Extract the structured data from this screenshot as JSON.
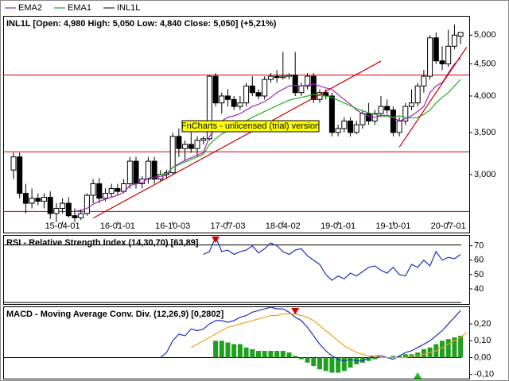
{
  "chart_data": [
    {
      "type": "candlestick",
      "name": "INL1L",
      "title": "INL1L [Open: 4,980  High: 5,050  Low: 4,840  Close: 5,050] (+5,21%)",
      "watermark": "FnCharts - unlicensed (trial) version",
      "categories": [
        null,
        null,
        null,
        null,
        null,
        null,
        null,
        null,
        "15-04-01",
        null,
        null,
        null,
        null,
        null,
        null,
        null,
        null,
        "16-01-01",
        null,
        null,
        null,
        null,
        null,
        null,
        null,
        null,
        "16-10-03",
        null,
        null,
        null,
        null,
        null,
        null,
        null,
        null,
        "17-07-03",
        null,
        null,
        null,
        null,
        null,
        null,
        null,
        null,
        "18-04-02",
        null,
        null,
        null,
        null,
        null,
        null,
        null,
        null,
        "19-01-01",
        null,
        null,
        null,
        null,
        null,
        null,
        null,
        null,
        "19-10-01",
        null,
        null,
        null,
        null,
        null,
        null,
        null,
        null,
        "20-07-01",
        null,
        null
      ],
      "open": [
        3050,
        3200,
        2800,
        2700,
        2750,
        2720,
        2760,
        2600,
        2650,
        2700,
        2580,
        2560,
        2600,
        2780,
        2900,
        2750,
        2800,
        2850,
        2820,
        2900,
        3150,
        2900,
        2950,
        3150,
        2950,
        3000,
        3020,
        3450,
        3300,
        3350,
        3300,
        3400,
        3420,
        4300,
        3900,
        4000,
        3950,
        3850,
        3900,
        4150,
        4050,
        4000,
        4250,
        4300,
        4280,
        4300,
        4320,
        4050,
        4150,
        4300,
        3950,
        4050,
        4000,
        3500,
        3550,
        3650,
        3500,
        3600,
        3750,
        3650,
        3750,
        3850,
        3800,
        3500,
        3650,
        3850,
        3900,
        4150,
        4300,
        4950,
        4550,
        4500,
        4800,
        4980
      ],
      "high": [
        3250,
        3250,
        2900,
        2850,
        2800,
        2800,
        2820,
        2700,
        2750,
        2760,
        2650,
        2640,
        2800,
        2950,
        2960,
        2850,
        2900,
        2900,
        2950,
        3200,
        3200,
        2980,
        3200,
        3200,
        3050,
        3050,
        3500,
        3550,
        3400,
        3500,
        3450,
        3450,
        4320,
        4350,
        4050,
        4100,
        4000,
        4000,
        4200,
        4300,
        4100,
        4300,
        4350,
        4400,
        4700,
        4350,
        4700,
        4200,
        4350,
        4350,
        4100,
        4100,
        4050,
        3600,
        3700,
        3700,
        3650,
        3800,
        3900,
        3800,
        4000,
        3950,
        3850,
        3700,
        3900,
        4100,
        4200,
        4400,
        5000,
        5050,
        4800,
        5100,
        5200,
        5050
      ],
      "low": [
        2950,
        2750,
        2600,
        2650,
        2680,
        2650,
        2550,
        2520,
        2600,
        2560,
        2520,
        2540,
        2580,
        2700,
        2700,
        2720,
        2760,
        2780,
        2800,
        2850,
        2850,
        2850,
        2900,
        2900,
        2920,
        2950,
        3000,
        3200,
        3150,
        3250,
        3200,
        3350,
        3400,
        3850,
        3750,
        3850,
        3800,
        3800,
        3850,
        4000,
        3950,
        3950,
        4200,
        4200,
        4250,
        4250,
        4000,
        4000,
        4100,
        3900,
        3900,
        3950,
        3450,
        3450,
        3500,
        3450,
        3480,
        3550,
        3600,
        3600,
        3700,
        3750,
        3450,
        3450,
        3600,
        3800,
        3850,
        4050,
        4250,
        4500,
        4400,
        4450,
        4750,
        4840
      ],
      "close": [
        3200,
        2800,
        2700,
        2750,
        2720,
        2760,
        2600,
        2650,
        2700,
        2580,
        2560,
        2600,
        2780,
        2900,
        2750,
        2800,
        2850,
        2820,
        2900,
        3150,
        2900,
        2950,
        3150,
        2950,
        3000,
        3020,
        3450,
        3300,
        3350,
        3300,
        3400,
        3420,
        4300,
        3900,
        4000,
        3950,
        3850,
        3900,
        4150,
        4050,
        4000,
        4250,
        4300,
        4280,
        4300,
        4320,
        4050,
        4150,
        4300,
        3950,
        4050,
        4000,
        3500,
        3550,
        3650,
        3500,
        3600,
        3750,
        3650,
        3750,
        3850,
        3800,
        3500,
        3650,
        3850,
        3900,
        4150,
        4300,
        4950,
        4550,
        4500,
        4800,
        5000,
        5050
      ],
      "series": [
        {
          "name": "EMA2",
          "color": "#a020c0",
          "values": [
            null,
            null,
            null,
            null,
            null,
            null,
            null,
            null,
            null,
            null,
            2620,
            2630,
            2650,
            2690,
            2720,
            2740,
            2760,
            2780,
            2810,
            2880,
            2900,
            2910,
            2960,
            2970,
            2980,
            2990,
            3080,
            3120,
            3160,
            3190,
            3220,
            3250,
            3450,
            3550,
            3650,
            3700,
            3720,
            3750,
            3800,
            3850,
            3880,
            3920,
            3980,
            4050,
            4100,
            4150,
            4160,
            4150,
            4160,
            4180,
            4150,
            4120,
            4100,
            4020,
            3950,
            3880,
            3800,
            3750,
            3720,
            3700,
            3720,
            3730,
            3700,
            3650,
            3680,
            3720,
            3780,
            3850,
            4050,
            4150,
            4200,
            4350,
            4500,
            4600
          ]
        },
        {
          "name": "EMA1",
          "color": "#20b020",
          "values": [
            null,
            null,
            null,
            null,
            null,
            null,
            null,
            null,
            null,
            null,
            null,
            null,
            null,
            null,
            null,
            null,
            null,
            null,
            null,
            null,
            null,
            null,
            null,
            null,
            3000,
            3010,
            3080,
            3110,
            3140,
            3170,
            3200,
            3230,
            3350,
            3420,
            3480,
            3520,
            3560,
            3600,
            3650,
            3700,
            3740,
            3780,
            3820,
            3860,
            3900,
            3940,
            3960,
            3980,
            4000,
            4020,
            4010,
            4000,
            3980,
            3940,
            3900,
            3860,
            3820,
            3790,
            3760,
            3740,
            3720,
            3710,
            3700,
            3720,
            3700,
            3690,
            3700,
            3740,
            3800,
            3900,
            3980,
            4050,
            4150,
            4250
          ]
        }
      ],
      "ylim": [
        2425,
        5350
      ],
      "log_scale": true,
      "yticks": [
        {
          "value": 5000,
          "label": "5,000"
        },
        {
          "value": 4500,
          "label": "4,500"
        },
        {
          "value": 4000,
          "label": "4,000"
        },
        {
          "value": 3500,
          "label": "3,500"
        },
        {
          "value": 3000,
          "label": "3,000"
        }
      ],
      "hlines": [
        4320,
        3260,
        2620
      ],
      "line_color": "#cc0000",
      "trendlines": [
        {
          "from": [
            13,
            2557
          ],
          "to": [
            60,
            4545
          ]
        },
        {
          "from": [
            63,
            3317
          ],
          "to": [
            74,
            4785
          ]
        }
      ]
    },
    {
      "type": "line",
      "title": "RSI - Relative Strength Index (14,30,70) [63,89]",
      "color": "#2030c0",
      "values": [
        null,
        null,
        null,
        null,
        null,
        null,
        null,
        null,
        null,
        null,
        null,
        null,
        null,
        null,
        null,
        null,
        null,
        null,
        null,
        null,
        null,
        null,
        null,
        null,
        null,
        null,
        null,
        null,
        null,
        null,
        null,
        64,
        66,
        76,
        66,
        67,
        64,
        66,
        67,
        70,
        65,
        68,
        72,
        70,
        66,
        64,
        67,
        68,
        63,
        60,
        57,
        50,
        46,
        49,
        47,
        51,
        49,
        52,
        55,
        56,
        53,
        51,
        55,
        50,
        49,
        57,
        55,
        60,
        56,
        66,
        60,
        62,
        61,
        64
      ],
      "ylim": [
        29.5,
        77
      ],
      "yticks": [
        70,
        60,
        50,
        40
      ],
      "levels": [
        70,
        30
      ],
      "signals": [
        {
          "index": 33,
          "direction": "down",
          "color": "#cc0000"
        }
      ]
    },
    {
      "type": "combo",
      "title": "MACD - Moving Average Conv. Div. (12,26,9) [0,2802]",
      "series": [
        {
          "color": "#2030c0",
          "values": [
            null,
            null,
            null,
            null,
            null,
            null,
            null,
            null,
            null,
            null,
            null,
            null,
            null,
            null,
            null,
            null,
            null,
            null,
            null,
            null,
            null,
            null,
            null,
            null,
            0.0,
            0.03,
            0.1,
            0.14,
            0.13,
            0.17,
            0.16,
            0.17,
            0.2,
            0.22,
            0.22,
            0.21,
            0.22,
            0.24,
            0.25,
            0.27,
            0.28,
            0.29,
            0.3,
            0.29,
            0.29,
            0.27,
            0.24,
            0.22,
            0.18,
            0.13,
            0.08,
            0.04,
            0.01,
            -0.01,
            -0.02,
            -0.01,
            -0.02,
            -0.02,
            0.0,
            0.01,
            0.01,
            0.0,
            -0.01,
            0.01,
            0.03,
            0.04,
            0.06,
            0.08,
            0.1,
            0.13,
            0.16,
            0.2,
            0.24,
            0.28
          ]
        },
        {
          "color": "#f0a020",
          "values": [
            null,
            null,
            null,
            null,
            null,
            null,
            null,
            null,
            null,
            null,
            null,
            null,
            null,
            null,
            null,
            null,
            null,
            null,
            null,
            null,
            null,
            null,
            null,
            null,
            null,
            null,
            null,
            null,
            null,
            0.06,
            0.08,
            0.1,
            0.12,
            0.14,
            0.16,
            0.18,
            0.19,
            0.2,
            0.21,
            0.22,
            0.23,
            0.24,
            0.25,
            0.25,
            0.26,
            0.26,
            0.26,
            0.25,
            0.24,
            0.22,
            0.19,
            0.16,
            0.13,
            0.1,
            0.07,
            0.05,
            0.03,
            0.02,
            0.01,
            0.01,
            0.0,
            0.0,
            0.0,
            0.0,
            0.0,
            0.01,
            0.01,
            0.02,
            0.03,
            0.04,
            0.06,
            0.08,
            0.1,
            0.12,
            0.15
          ]
        }
      ],
      "bars": {
        "color": "#20a020",
        "values": [
          null,
          null,
          null,
          null,
          null,
          null,
          null,
          null,
          null,
          null,
          null,
          null,
          null,
          null,
          null,
          null,
          null,
          null,
          null,
          null,
          null,
          null,
          null,
          null,
          null,
          null,
          null,
          null,
          null,
          null,
          null,
          null,
          null,
          0.1,
          0.1,
          0.09,
          0.08,
          0.08,
          0.06,
          0.05,
          0.04,
          0.04,
          0.04,
          0.04,
          0.04,
          0.03,
          0.01,
          -0.01,
          -0.03,
          -0.05,
          -0.07,
          -0.08,
          -0.09,
          -0.09,
          -0.08,
          -0.06,
          -0.04,
          -0.03,
          -0.02,
          -0.01,
          0.0,
          0.0,
          0.01,
          0.01,
          0.02,
          0.02,
          0.03,
          0.05,
          0.06,
          0.08,
          0.1,
          0.11,
          0.12,
          0.13
        ]
      },
      "ylim": [
        -0.13,
        0.3
      ],
      "yticks": [
        {
          "value": 0.2,
          "label": "0,20"
        },
        {
          "value": 0.1,
          "label": "0,10"
        },
        {
          "value": 0,
          "label": "0,00"
        },
        {
          "value": -0.1,
          "label": "-0,10"
        }
      ],
      "levels": [
        0
      ],
      "signals": [
        {
          "index": 46,
          "direction": "down",
          "color": "#cc0000"
        },
        {
          "index": 66,
          "direction": "up",
          "color": "#20c020"
        }
      ]
    }
  ]
}
